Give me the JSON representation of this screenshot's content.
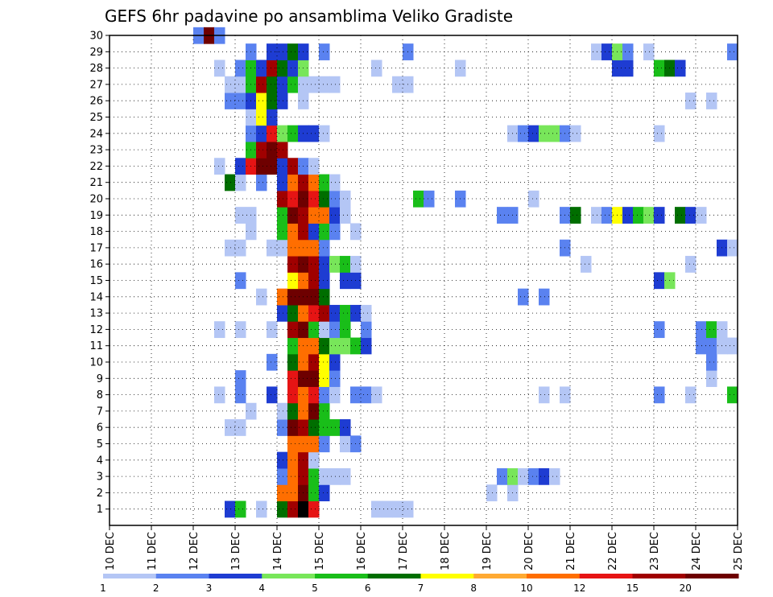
{
  "chart_data": {
    "type": "heatmap",
    "title": "GEFS 6hr padavine po ansamblima Veliko Gradiste",
    "xlabel": "",
    "ylabel": "",
    "x_ticks": [
      "10 DEC",
      "11 DEC",
      "12 DEC",
      "13 DEC",
      "14 DEC",
      "15 DEC",
      "16 DEC",
      "17 DEC",
      "18 DEC",
      "19 DEC",
      "20 DEC",
      "21 DEC",
      "22 DEC",
      "23 DEC",
      "24 DEC",
      "25 DEC"
    ],
    "xlim": [
      0,
      15
    ],
    "y_ticks": [
      1,
      2,
      3,
      4,
      5,
      6,
      7,
      8,
      9,
      10,
      11,
      12,
      13,
      14,
      15,
      16,
      17,
      18,
      19,
      20,
      21,
      22,
      23,
      24,
      25,
      26,
      27,
      28,
      29,
      30
    ],
    "ylim": [
      0,
      30
    ],
    "grid": true,
    "time_step_hours": 6,
    "colorbar": {
      "labels": [
        "1",
        "2",
        "3",
        "4",
        "5",
        "6",
        "7",
        "8",
        "10",
        "12",
        "15",
        "20"
      ],
      "colors": [
        "#b4c6f5",
        "#5a82f0",
        "#1e3cd2",
        "#78e65a",
        "#19be19",
        "#006e00",
        "#ffff00",
        "#ffaa32",
        "#ff6e00",
        "#e61414",
        "#a00000",
        "#6e0000"
      ]
    },
    "cells": [
      [
        1,
        2.75,
        3
      ],
      [
        1,
        3.0,
        5
      ],
      [
        1,
        3.5,
        1
      ],
      [
        1,
        4.0,
        6
      ],
      [
        1,
        4.25,
        11
      ],
      [
        1,
        4.5,
        13
      ],
      [
        1,
        4.75,
        10
      ],
      [
        1,
        6.25,
        1
      ],
      [
        1,
        6.5,
        1
      ],
      [
        1,
        6.75,
        1
      ],
      [
        1,
        7.0,
        1
      ],
      [
        2,
        4.0,
        9
      ],
      [
        2,
        4.25,
        9
      ],
      [
        2,
        4.5,
        12
      ],
      [
        2,
        4.75,
        5
      ],
      [
        2,
        5.0,
        3
      ],
      [
        2,
        9.0,
        1
      ],
      [
        2,
        9.5,
        1
      ],
      [
        3,
        4.0,
        2
      ],
      [
        3,
        4.25,
        9
      ],
      [
        3,
        4.5,
        11
      ],
      [
        3,
        4.75,
        5
      ],
      [
        3,
        5.0,
        1
      ],
      [
        3,
        5.25,
        1
      ],
      [
        3,
        5.5,
        1
      ],
      [
        3,
        9.25,
        2
      ],
      [
        3,
        9.5,
        4
      ],
      [
        3,
        9.75,
        1
      ],
      [
        3,
        10.0,
        2
      ],
      [
        3,
        10.25,
        3
      ],
      [
        3,
        10.5,
        1
      ],
      [
        4,
        4.0,
        3
      ],
      [
        4,
        4.25,
        9
      ],
      [
        4,
        4.5,
        11
      ],
      [
        4,
        4.75,
        1
      ],
      [
        5,
        4.25,
        9
      ],
      [
        5,
        4.5,
        9
      ],
      [
        5,
        4.75,
        9
      ],
      [
        5,
        5.0,
        2
      ],
      [
        5,
        5.5,
        1
      ],
      [
        5,
        5.75,
        2
      ],
      [
        6,
        2.75,
        1
      ],
      [
        6,
        3.0,
        1
      ],
      [
        6,
        4.0,
        2
      ],
      [
        6,
        4.25,
        12
      ],
      [
        6,
        4.5,
        11
      ],
      [
        6,
        4.75,
        6
      ],
      [
        6,
        5.0,
        5
      ],
      [
        6,
        5.25,
        5
      ],
      [
        6,
        5.5,
        3
      ],
      [
        7,
        3.25,
        1
      ],
      [
        7,
        4.0,
        1
      ],
      [
        7,
        4.25,
        6
      ],
      [
        7,
        4.5,
        9
      ],
      [
        7,
        4.75,
        12
      ],
      [
        7,
        5.0,
        5
      ],
      [
        8,
        2.5,
        1
      ],
      [
        8,
        3.0,
        2
      ],
      [
        8,
        3.75,
        3
      ],
      [
        8,
        4.25,
        10
      ],
      [
        8,
        4.5,
        9
      ],
      [
        8,
        4.75,
        10
      ],
      [
        8,
        5.0,
        2
      ],
      [
        8,
        5.25,
        1
      ],
      [
        8,
        5.75,
        2
      ],
      [
        8,
        6.0,
        2
      ],
      [
        8,
        6.25,
        1
      ],
      [
        8,
        10.25,
        1
      ],
      [
        8,
        10.75,
        1
      ],
      [
        8,
        13.0,
        2
      ],
      [
        8,
        13.75,
        1
      ],
      [
        8,
        14.75,
        5
      ],
      [
        9,
        3.0,
        2
      ],
      [
        9,
        4.25,
        10
      ],
      [
        9,
        4.5,
        12
      ],
      [
        9,
        4.75,
        12
      ],
      [
        9,
        5.0,
        7
      ],
      [
        9,
        5.25,
        2
      ],
      [
        9,
        14.25,
        1
      ],
      [
        10,
        3.75,
        2
      ],
      [
        10,
        4.25,
        6
      ],
      [
        10,
        4.5,
        9
      ],
      [
        10,
        4.75,
        11
      ],
      [
        10,
        5.0,
        7
      ],
      [
        10,
        5.25,
        3
      ],
      [
        10,
        14.25,
        2
      ],
      [
        11,
        4.25,
        5
      ],
      [
        11,
        4.5,
        9
      ],
      [
        11,
        4.75,
        9
      ],
      [
        11,
        5.0,
        6
      ],
      [
        11,
        5.25,
        4
      ],
      [
        11,
        5.5,
        4
      ],
      [
        11,
        5.75,
        5
      ],
      [
        11,
        6.0,
        3
      ],
      [
        11,
        14.0,
        2
      ],
      [
        11,
        14.25,
        2
      ],
      [
        11,
        14.5,
        1
      ],
      [
        11,
        14.75,
        1
      ],
      [
        12,
        2.5,
        1
      ],
      [
        12,
        3.0,
        1
      ],
      [
        12,
        3.75,
        1
      ],
      [
        12,
        4.25,
        11
      ],
      [
        12,
        4.5,
        12
      ],
      [
        12,
        4.75,
        5
      ],
      [
        12,
        5.0,
        1
      ],
      [
        12,
        5.25,
        2
      ],
      [
        12,
        5.5,
        5
      ],
      [
        12,
        6.0,
        2
      ],
      [
        12,
        13.0,
        2
      ],
      [
        12,
        14.0,
        2
      ],
      [
        12,
        14.25,
        5
      ],
      [
        12,
        14.5,
        1
      ],
      [
        13,
        4.0,
        3
      ],
      [
        13,
        4.25,
        6
      ],
      [
        13,
        4.5,
        9
      ],
      [
        13,
        4.75,
        10
      ],
      [
        13,
        5.0,
        11
      ],
      [
        13,
        5.25,
        3
      ],
      [
        13,
        5.5,
        5
      ],
      [
        13,
        5.75,
        3
      ],
      [
        13,
        6.0,
        1
      ],
      [
        14,
        3.5,
        1
      ],
      [
        14,
        4.0,
        9
      ],
      [
        14,
        4.25,
        12
      ],
      [
        14,
        4.5,
        12
      ],
      [
        14,
        4.75,
        12
      ],
      [
        14,
        5.0,
        6
      ],
      [
        14,
        9.75,
        2
      ],
      [
        14,
        10.25,
        2
      ],
      [
        15,
        3.0,
        2
      ],
      [
        15,
        4.25,
        7
      ],
      [
        15,
        4.5,
        9
      ],
      [
        15,
        4.75,
        11
      ],
      [
        15,
        5.0,
        3
      ],
      [
        15,
        5.5,
        3
      ],
      [
        15,
        5.75,
        3
      ],
      [
        15,
        13.0,
        3
      ],
      [
        15,
        13.25,
        4
      ],
      [
        16,
        4.25,
        11
      ],
      [
        16,
        4.5,
        12
      ],
      [
        16,
        4.75,
        11
      ],
      [
        16,
        5.0,
        3
      ],
      [
        16,
        5.25,
        4
      ],
      [
        16,
        5.5,
        5
      ],
      [
        16,
        5.75,
        1
      ],
      [
        16,
        11.25,
        1
      ],
      [
        16,
        13.75,
        1
      ],
      [
        17,
        2.75,
        1
      ],
      [
        17,
        3.0,
        1
      ],
      [
        17,
        3.75,
        1
      ],
      [
        17,
        4.0,
        1
      ],
      [
        17,
        4.25,
        9
      ],
      [
        17,
        4.5,
        9
      ],
      [
        17,
        4.75,
        9
      ],
      [
        17,
        5.0,
        2
      ],
      [
        17,
        10.75,
        2
      ],
      [
        17,
        14.5,
        3
      ],
      [
        17,
        14.75,
        1
      ],
      [
        18,
        3.25,
        1
      ],
      [
        18,
        4.0,
        5
      ],
      [
        18,
        4.25,
        9
      ],
      [
        18,
        4.5,
        11
      ],
      [
        18,
        4.75,
        3
      ],
      [
        18,
        5.0,
        5
      ],
      [
        18,
        5.25,
        2
      ],
      [
        18,
        5.75,
        1
      ],
      [
        19,
        3.0,
        1
      ],
      [
        19,
        3.25,
        1
      ],
      [
        19,
        4.0,
        5
      ],
      [
        19,
        4.25,
        12
      ],
      [
        19,
        4.5,
        11
      ],
      [
        19,
        4.75,
        9
      ],
      [
        19,
        5.0,
        9
      ],
      [
        19,
        5.25,
        3
      ],
      [
        19,
        5.5,
        1
      ],
      [
        19,
        9.25,
        2
      ],
      [
        19,
        9.5,
        2
      ],
      [
        19,
        10.75,
        2
      ],
      [
        19,
        11.0,
        6
      ],
      [
        19,
        11.5,
        1
      ],
      [
        19,
        11.75,
        2
      ],
      [
        19,
        12.0,
        7
      ],
      [
        19,
        12.25,
        3
      ],
      [
        19,
        12.5,
        5
      ],
      [
        19,
        12.75,
        4
      ],
      [
        19,
        13.0,
        3
      ],
      [
        19,
        13.5,
        6
      ],
      [
        19,
        13.75,
        3
      ],
      [
        19,
        14.0,
        1
      ],
      [
        20,
        4.0,
        11
      ],
      [
        20,
        4.25,
        10
      ],
      [
        20,
        4.5,
        12
      ],
      [
        20,
        4.75,
        10
      ],
      [
        20,
        5.0,
        6
      ],
      [
        20,
        5.25,
        2
      ],
      [
        20,
        5.5,
        1
      ],
      [
        20,
        7.25,
        5
      ],
      [
        20,
        7.5,
        2
      ],
      [
        20,
        8.25,
        2
      ],
      [
        20,
        10.0,
        1
      ],
      [
        21,
        2.75,
        6
      ],
      [
        21,
        3.0,
        1
      ],
      [
        21,
        3.5,
        2
      ],
      [
        21,
        4.0,
        3
      ],
      [
        21,
        4.25,
        9
      ],
      [
        21,
        4.5,
        11
      ],
      [
        21,
        4.75,
        9
      ],
      [
        21,
        5.0,
        5
      ],
      [
        21,
        5.25,
        1
      ],
      [
        22,
        2.5,
        1
      ],
      [
        22,
        3.0,
        3
      ],
      [
        22,
        3.25,
        10
      ],
      [
        22,
        3.5,
        12
      ],
      [
        22,
        3.75,
        12
      ],
      [
        22,
        4.0,
        3
      ],
      [
        22,
        4.25,
        11
      ],
      [
        22,
        4.5,
        2
      ],
      [
        22,
        4.75,
        1
      ],
      [
        23,
        3.25,
        5
      ],
      [
        23,
        3.5,
        11
      ],
      [
        23,
        3.75,
        12
      ],
      [
        23,
        4.0,
        11
      ],
      [
        24,
        3.25,
        2
      ],
      [
        24,
        3.5,
        3
      ],
      [
        24,
        3.75,
        10
      ],
      [
        24,
        4.0,
        4
      ],
      [
        24,
        4.25,
        5
      ],
      [
        24,
        4.5,
        3
      ],
      [
        24,
        4.75,
        3
      ],
      [
        24,
        5.0,
        1
      ],
      [
        24,
        9.5,
        1
      ],
      [
        24,
        9.75,
        2
      ],
      [
        24,
        10.0,
        3
      ],
      [
        24,
        10.25,
        4
      ],
      [
        24,
        10.5,
        4
      ],
      [
        24,
        10.75,
        2
      ],
      [
        24,
        11.0,
        1
      ],
      [
        24,
        13.0,
        1
      ],
      [
        25,
        3.25,
        1
      ],
      [
        25,
        3.5,
        7
      ],
      [
        25,
        3.75,
        3
      ],
      [
        26,
        2.75,
        2
      ],
      [
        26,
        3.0,
        2
      ],
      [
        26,
        3.25,
        3
      ],
      [
        26,
        3.5,
        7
      ],
      [
        26,
        3.75,
        6
      ],
      [
        26,
        4.0,
        3
      ],
      [
        26,
        4.5,
        1
      ],
      [
        26,
        13.75,
        1
      ],
      [
        26,
        14.25,
        1
      ],
      [
        27,
        2.75,
        1
      ],
      [
        27,
        3.0,
        1
      ],
      [
        27,
        3.25,
        5
      ],
      [
        27,
        3.5,
        11
      ],
      [
        27,
        3.75,
        6
      ],
      [
        27,
        4.0,
        3
      ],
      [
        27,
        4.25,
        5
      ],
      [
        27,
        4.5,
        1
      ],
      [
        27,
        4.75,
        1
      ],
      [
        27,
        5.0,
        1
      ],
      [
        27,
        5.25,
        1
      ],
      [
        27,
        6.75,
        1
      ],
      [
        27,
        7.0,
        1
      ],
      [
        28,
        2.5,
        1
      ],
      [
        28,
        3.0,
        2
      ],
      [
        28,
        3.25,
        5
      ],
      [
        28,
        3.5,
        3
      ],
      [
        28,
        3.75,
        11
      ],
      [
        28,
        4.0,
        6
      ],
      [
        28,
        4.25,
        3
      ],
      [
        28,
        4.5,
        4
      ],
      [
        28,
        6.25,
        1
      ],
      [
        28,
        8.25,
        1
      ],
      [
        28,
        12.0,
        3
      ],
      [
        28,
        12.25,
        3
      ],
      [
        28,
        13.0,
        5
      ],
      [
        28,
        13.25,
        6
      ],
      [
        28,
        13.5,
        3
      ],
      [
        29,
        3.25,
        2
      ],
      [
        29,
        3.75,
        3
      ],
      [
        29,
        4.0,
        3
      ],
      [
        29,
        4.25,
        6
      ],
      [
        29,
        4.5,
        3
      ],
      [
        29,
        5.0,
        2
      ],
      [
        29,
        7.0,
        2
      ],
      [
        29,
        11.5,
        1
      ],
      [
        29,
        11.75,
        3
      ],
      [
        29,
        12.0,
        4
      ],
      [
        29,
        12.25,
        2
      ],
      [
        29,
        12.75,
        1
      ],
      [
        29,
        14.75,
        2
      ],
      [
        30,
        2.0,
        2
      ],
      [
        30,
        2.25,
        12
      ],
      [
        30,
        2.5,
        2
      ]
    ]
  }
}
